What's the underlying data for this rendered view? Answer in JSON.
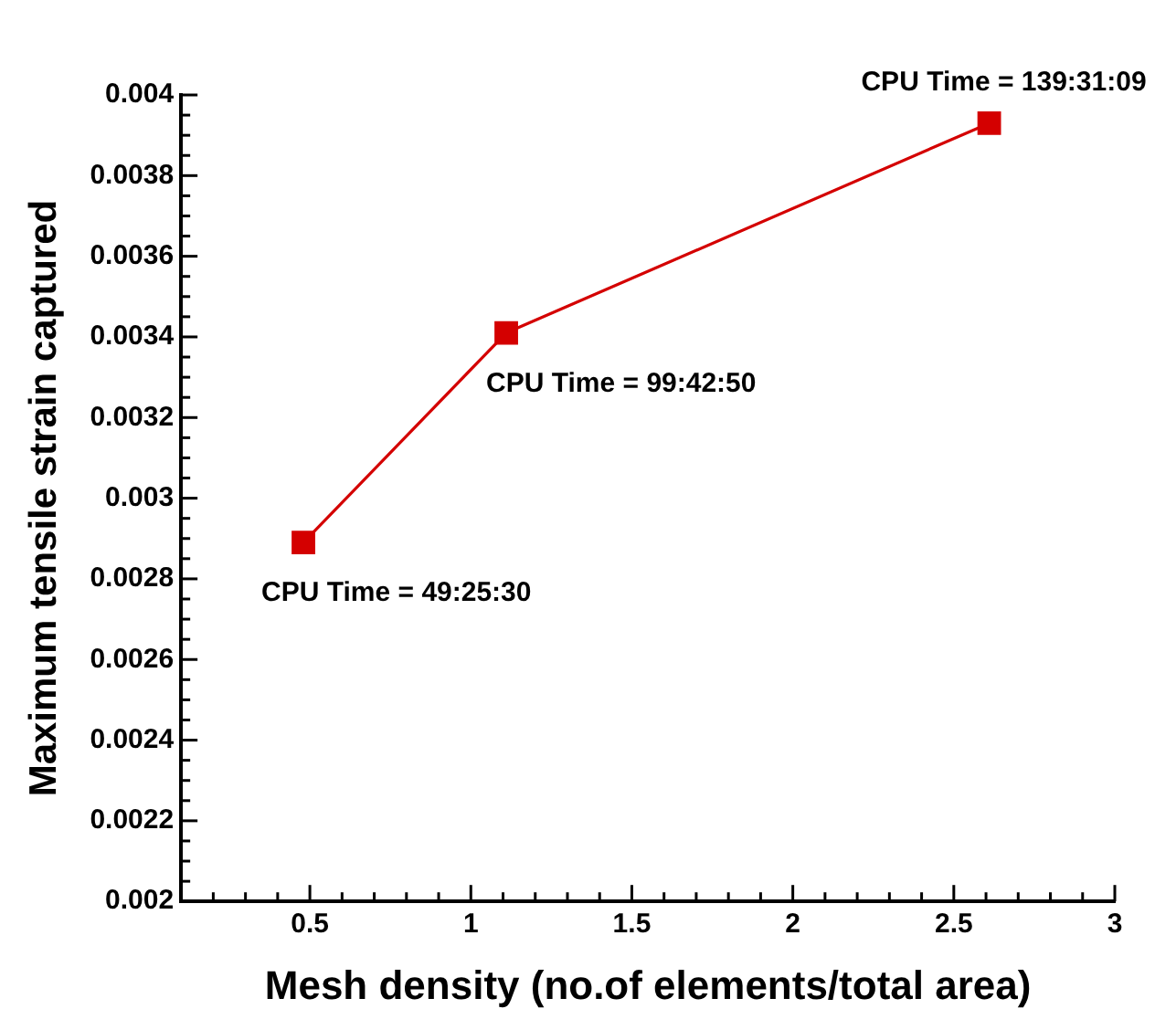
{
  "chart_data": {
    "type": "line",
    "xlabel": "Mesh density (no.of elements/total area)",
    "ylabel": "Maximum tensile strain captured",
    "x": [
      0.48,
      1.11,
      2.61
    ],
    "series": [
      {
        "color": "#d40000",
        "values": [
          0.00289,
          0.00341,
          0.00393
        ]
      }
    ],
    "marker": "square",
    "line_style": "solid",
    "grid": false,
    "legend": false,
    "xlim": [
      0.1,
      3
    ],
    "ylim": [
      0.002,
      0.004
    ],
    "xticks": [
      {
        "value": 0.1,
        "label": null
      },
      {
        "value": 0.2,
        "label": null
      },
      {
        "value": 0.3,
        "label": null
      },
      {
        "value": 0.4,
        "label": null
      },
      0.5,
      {
        "value": 0.6,
        "label": null
      },
      {
        "value": 0.7,
        "label": null
      },
      {
        "value": 0.8,
        "label": null
      },
      {
        "value": 0.9,
        "label": null
      },
      1,
      {
        "value": 1.1,
        "label": null
      },
      {
        "value": 1.2,
        "label": null
      },
      {
        "value": 1.3,
        "label": null
      },
      {
        "value": 1.4,
        "label": null
      },
      1.5,
      {
        "value": 1.6,
        "label": null
      },
      {
        "value": 1.7,
        "label": null
      },
      {
        "value": 1.8,
        "label": null
      },
      {
        "value": 1.9,
        "label": null
      },
      2,
      {
        "value": 2.1,
        "label": null
      },
      {
        "value": 2.2,
        "label": null
      },
      {
        "value": 2.3,
        "label": null
      },
      {
        "value": 2.4,
        "label": null
      },
      2.5,
      {
        "value": 2.6,
        "label": null
      },
      {
        "value": 2.7,
        "label": null
      },
      {
        "value": 2.8,
        "label": null
      },
      {
        "value": 2.9,
        "label": null
      },
      3
    ],
    "yticks": [
      0.002,
      {
        "value": 0.00205,
        "label": null
      },
      {
        "value": 0.0021,
        "label": null
      },
      {
        "value": 0.00215,
        "label": null
      },
      0.0022,
      {
        "value": 0.00225,
        "label": null
      },
      {
        "value": 0.0023,
        "label": null
      },
      {
        "value": 0.00235,
        "label": null
      },
      0.0024,
      {
        "value": 0.00245,
        "label": null
      },
      {
        "value": 0.0025,
        "label": null
      },
      {
        "value": 0.00255,
        "label": null
      },
      0.0026,
      {
        "value": 0.00265,
        "label": null
      },
      {
        "value": 0.0027,
        "label": null
      },
      {
        "value": 0.00275,
        "label": null
      },
      0.0028,
      {
        "value": 0.00285,
        "label": null
      },
      {
        "value": 0.0029,
        "label": null
      },
      {
        "value": 0.00295,
        "label": null
      },
      0.003,
      {
        "value": 0.00305,
        "label": null
      },
      {
        "value": 0.0031,
        "label": null
      },
      {
        "value": 0.00315,
        "label": null
      },
      0.0032,
      {
        "value": 0.00325,
        "label": null
      },
      {
        "value": 0.0033,
        "label": null
      },
      {
        "value": 0.00335,
        "label": null
      },
      0.0034,
      {
        "value": 0.00345,
        "label": null
      },
      {
        "value": 0.0035,
        "label": null
      },
      {
        "value": 0.00355,
        "label": null
      },
      0.0036,
      {
        "value": 0.00365,
        "label": null
      },
      {
        "value": 0.0037,
        "label": null
      },
      {
        "value": 0.00375,
        "label": null
      },
      0.0038,
      {
        "value": 0.00385,
        "label": null
      },
      {
        "value": 0.0039,
        "label": null
      },
      {
        "value": 0.00395,
        "label": null
      },
      0.004
    ],
    "annotations": [
      {
        "text": "CPU Time = 49:25:30",
        "x": 0.48,
        "y": 0.00289
      },
      {
        "text": "CPU Time = 99:42:50",
        "x": 1.11,
        "y": 0.00341
      },
      {
        "text": "CPU Time = 139:31:09",
        "x": 2.61,
        "y": 0.00393
      }
    ]
  }
}
